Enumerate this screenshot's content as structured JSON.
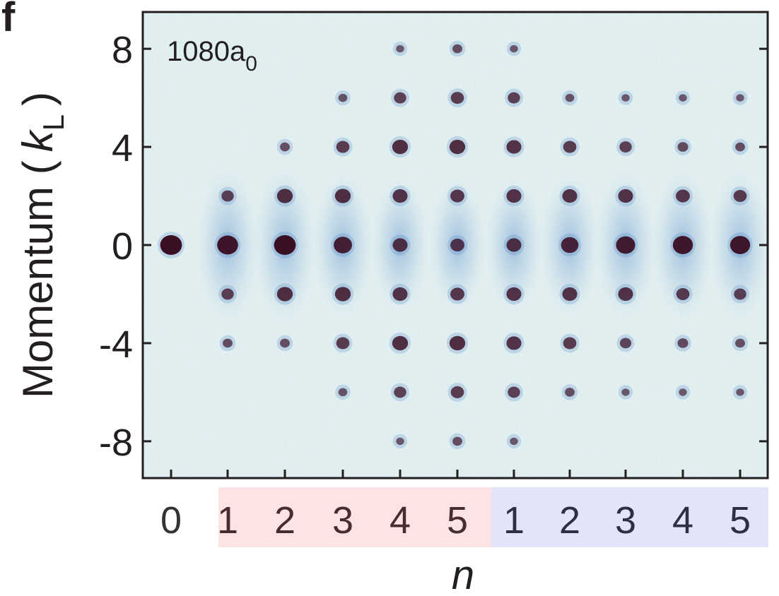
{
  "chart_data": {
    "type": "scatter",
    "panel_label": "f",
    "annotation": {
      "main": "1080a",
      "subscript": "0"
    },
    "ylabel": {
      "text": "Momentum (",
      "var": "k",
      "subscript": "L",
      "close": ")"
    },
    "xlabel": "n",
    "ylim": [
      -9.5,
      9.5
    ],
    "yticks": [
      8,
      4,
      0,
      -4,
      -8
    ],
    "ytick_labels": [
      "8",
      "4",
      "0",
      "-4",
      "-8"
    ],
    "x_tick_labels": [
      "0",
      "1",
      "2",
      "3",
      "4",
      "5",
      "1",
      "2",
      "3",
      "4",
      "5"
    ],
    "x_groups": [
      {
        "label_indices": [
          1,
          5
        ],
        "color": "#fde3e4"
      },
      {
        "label_indices": [
          6,
          10
        ],
        "color": "#e3e3fa"
      }
    ],
    "x_label_colors": [
      "#333333",
      "#4a2c2c",
      "#4a2c2c",
      "#4a2c2c",
      "#4a2c2c",
      "#4a2c2c",
      "#2e2e46",
      "#2e2e46",
      "#2e2e46",
      "#2e2e46",
      "#2e2e46"
    ],
    "background_color": "#e3f0f0",
    "spot_color": "#3a0f24",
    "halo_color": "#4f86c6",
    "columns": [
      {
        "momenta": [
          0
        ],
        "intensities": [
          1.0
        ]
      },
      {
        "momenta": [
          2,
          0,
          -2,
          -4
        ],
        "intensities": [
          0.45,
          0.95,
          0.45,
          0.3
        ]
      },
      {
        "momenta": [
          4,
          2,
          0,
          -2,
          -4
        ],
        "intensities": [
          0.3,
          0.65,
          1.0,
          0.65,
          0.3
        ]
      },
      {
        "momenta": [
          6,
          4,
          2,
          0,
          -2,
          -4,
          -6
        ],
        "intensities": [
          0.25,
          0.5,
          0.65,
          0.8,
          0.65,
          0.5,
          0.25
        ]
      },
      {
        "momenta": [
          8,
          6,
          4,
          2,
          0,
          -2,
          -4,
          -6,
          -8
        ],
        "intensities": [
          0.2,
          0.45,
          0.65,
          0.6,
          0.6,
          0.6,
          0.65,
          0.45,
          0.2
        ]
      },
      {
        "momenta": [
          8,
          6,
          4,
          2,
          0,
          -2,
          -4,
          -6,
          -8
        ],
        "intensities": [
          0.3,
          0.5,
          0.65,
          0.55,
          0.55,
          0.55,
          0.65,
          0.5,
          0.3
        ]
      },
      {
        "momenta": [
          8,
          6,
          4,
          2,
          0,
          -2,
          -4,
          -6,
          -8
        ],
        "intensities": [
          0.2,
          0.45,
          0.6,
          0.6,
          0.6,
          0.6,
          0.6,
          0.45,
          0.2
        ]
      },
      {
        "momenta": [
          6,
          4,
          2,
          0,
          -2,
          -4,
          -6
        ],
        "intensities": [
          0.25,
          0.5,
          0.6,
          0.75,
          0.6,
          0.5,
          0.3
        ]
      },
      {
        "momenta": [
          6,
          4,
          2,
          0,
          -2,
          -4,
          -6
        ],
        "intensities": [
          0.2,
          0.45,
          0.6,
          0.85,
          0.6,
          0.4,
          0.2
        ]
      },
      {
        "momenta": [
          6,
          4,
          2,
          0,
          -2,
          -4,
          -6
        ],
        "intensities": [
          0.2,
          0.35,
          0.55,
          0.9,
          0.5,
          0.35,
          0.2
        ]
      },
      {
        "momenta": [
          6,
          4,
          2,
          0,
          -2,
          -4,
          -6
        ],
        "intensities": [
          0.2,
          0.3,
          0.5,
          0.9,
          0.45,
          0.3,
          0.2
        ]
      }
    ]
  }
}
